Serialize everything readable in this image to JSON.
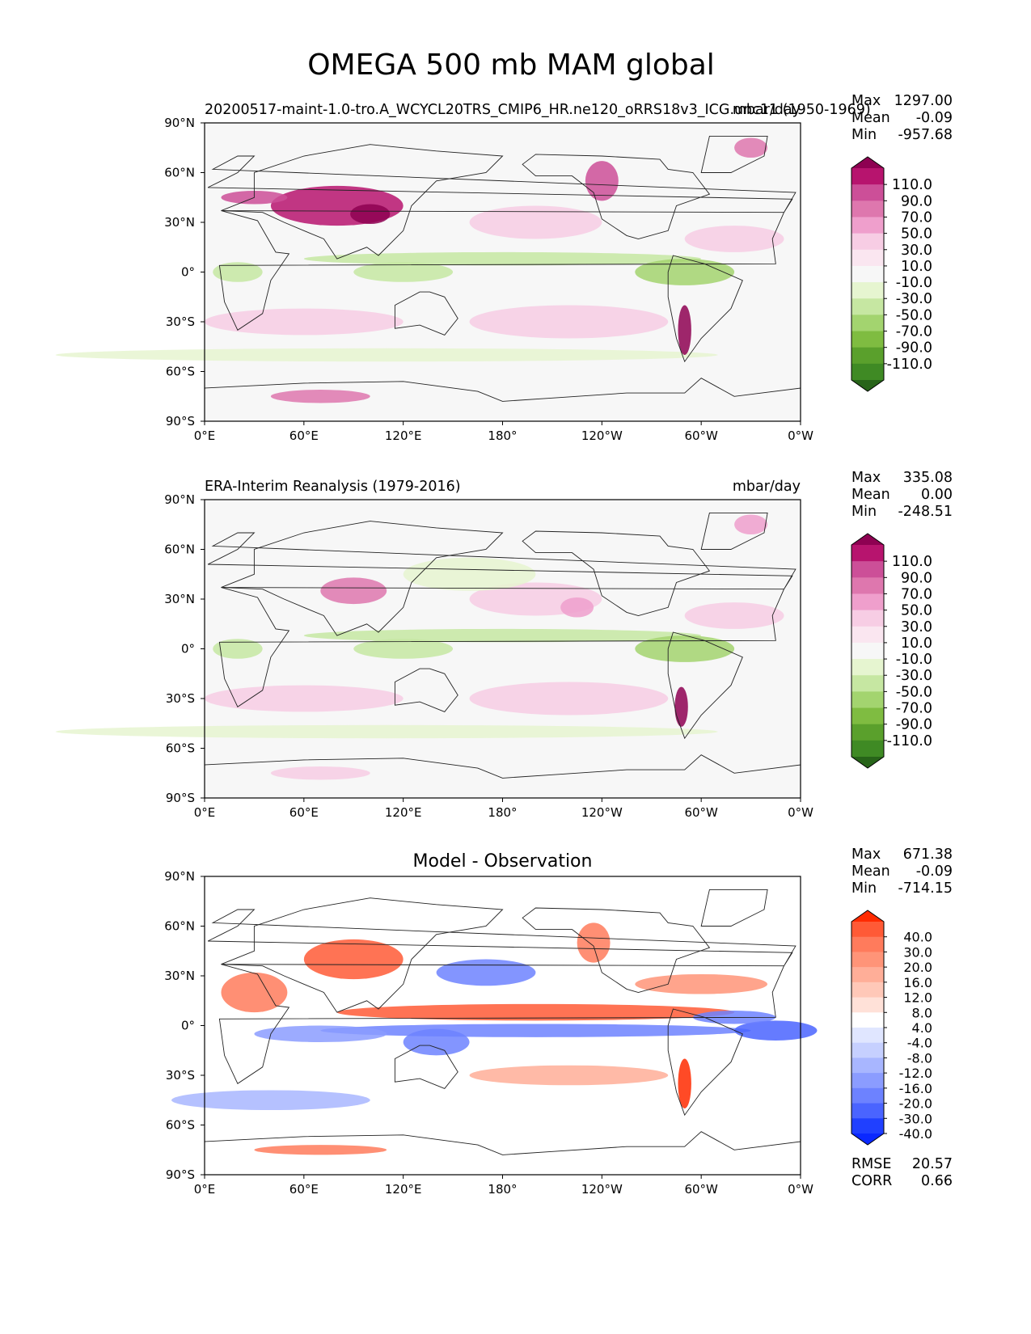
{
  "chart_data": {
    "type": "heatmap",
    "title": "OMEGA 500 mb MAM global",
    "x_ticks": [
      "0°E",
      "60°E",
      "120°E",
      "180°",
      "120°W",
      "60°W",
      "0°W"
    ],
    "y_ticks": [
      "90°N",
      "60°N",
      "30°N",
      "0°",
      "30°S",
      "60°S",
      "90°S"
    ],
    "x_range": [
      0,
      360
    ],
    "y_range": [
      -90,
      90
    ],
    "panels": [
      {
        "name": "model",
        "left_title": "20200517-maint-1.0-tro.A_WCYCL20TRS_CMIP6_HR.ne120_oRRS18v3_ICG.unc11 (1950-1969)",
        "center_title": "",
        "right_title": "mbar/day",
        "stats": [
          {
            "label": "Max",
            "value": "1297.00"
          },
          {
            "label": "Mean",
            "value": "-0.09"
          },
          {
            "label": "Min",
            "value": "-957.68"
          }
        ],
        "colorbar_levels": [
          "110.0",
          "90.0",
          "70.0",
          "50.0",
          "30.0",
          "10.0",
          "-10.0",
          "-30.0",
          "-50.0",
          "-70.0",
          "-90.0",
          "-110.0"
        ],
        "colorbar_colors": [
          "#8e0152",
          "#b7146e",
          "#cc4f98",
          "#de77ae",
          "#ef9fcc",
          "#f7cde4",
          "#fae6f0",
          "#f7f7f7",
          "#e6f5d0",
          "#c6e7a2",
          "#a3d46f",
          "#7fbc41",
          "#5aa02c",
          "#3f8a24",
          "#276419"
        ],
        "extremes": {
          "ascent_vs_descent": "diverging PiYG"
        }
      },
      {
        "name": "observation",
        "left_title": "ERA-Interim Reanalysis (1979-2016)",
        "center_title": "",
        "right_title": "mbar/day",
        "stats": [
          {
            "label": "Max",
            "value": "335.08"
          },
          {
            "label": "Mean",
            "value": "0.00"
          },
          {
            "label": "Min",
            "value": "-248.51"
          }
        ],
        "colorbar_levels": [
          "110.0",
          "90.0",
          "70.0",
          "50.0",
          "30.0",
          "10.0",
          "-10.0",
          "-30.0",
          "-50.0",
          "-70.0",
          "-90.0",
          "-110.0"
        ],
        "colorbar_colors": [
          "#8e0152",
          "#b7146e",
          "#cc4f98",
          "#de77ae",
          "#ef9fcc",
          "#f7cde4",
          "#fae6f0",
          "#f7f7f7",
          "#e6f5d0",
          "#c6e7a2",
          "#a3d46f",
          "#7fbc41",
          "#5aa02c",
          "#3f8a24",
          "#276419"
        ]
      },
      {
        "name": "difference",
        "left_title": "",
        "center_title": "Model - Observation",
        "right_title": "",
        "stats": [
          {
            "label": "Max",
            "value": "671.38"
          },
          {
            "label": "Mean",
            "value": "-0.09"
          },
          {
            "label": "Min",
            "value": "-714.15"
          }
        ],
        "extra_stats": [
          {
            "label": "RMSE",
            "value": "20.57"
          },
          {
            "label": "CORR",
            "value": "0.66"
          }
        ],
        "colorbar_levels": [
          "40.0",
          "30.0",
          "20.0",
          "16.0",
          "12.0",
          "8.0",
          "4.0",
          "-4.0",
          "-8.0",
          "-12.0",
          "-16.0",
          "-20.0",
          "-30.0",
          "-40.0"
        ],
        "colorbar_colors": [
          "#ff2a00",
          "#ff5a36",
          "#ff7b5c",
          "#ff9478",
          "#ffae98",
          "#ffc8b8",
          "#ffe1d8",
          "#ffffff",
          "#e0e6ff",
          "#c6d0ff",
          "#a8b6ff",
          "#8b9cff",
          "#6d82ff",
          "#4a64ff",
          "#2040ff",
          "#0a28ff"
        ]
      }
    ]
  }
}
